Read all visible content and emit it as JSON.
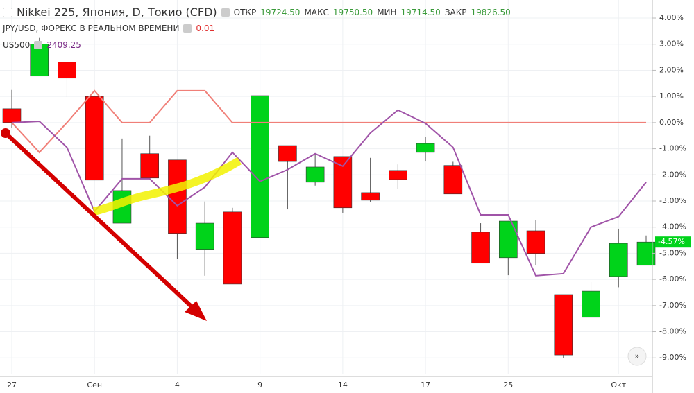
{
  "chart_data": {
    "type": "candlestick",
    "title": "Nikkei 225, Япония, D, Токио (CFD)",
    "readout": [
      {
        "label": "ОТКР",
        "value": "19724.50"
      },
      {
        "label": "МАКС",
        "value": "19750.50"
      },
      {
        "label": "МИН",
        "value": "19714.50"
      },
      {
        "label": "ЗАКР",
        "value": "19826.50"
      }
    ],
    "categories": [
      "27",
      null,
      null,
      "Сен",
      null,
      null,
      "4",
      null,
      null,
      "9",
      null,
      null,
      "14",
      null,
      null,
      "17",
      null,
      null,
      "25",
      null,
      null,
      null,
      "Окт",
      null
    ],
    "up_color": "#00d31a",
    "down_color": "#ff0000",
    "open": [
      0.53,
      1.78,
      2.31,
      1.0,
      -3.85,
      -1.19,
      -1.43,
      -4.85,
      -3.42,
      -4.4,
      -0.88,
      -2.28,
      -1.3,
      -2.68,
      -1.83,
      -1.14,
      -1.64,
      -4.19,
      -5.17,
      -4.14,
      -6.58,
      -7.45,
      -5.89,
      -5.46
    ],
    "high": [
      1.25,
      3.24,
      2.31,
      1.0,
      -0.61,
      -0.5,
      -1.43,
      -3.02,
      -3.26,
      1.03,
      -0.88,
      -1.17,
      -1.3,
      -1.35,
      -1.6,
      -0.56,
      -1.5,
      -3.85,
      -3.77,
      -3.74,
      -6.58,
      -6.1,
      -4.06,
      -4.32
    ],
    "low": [
      -0.2,
      1.78,
      0.98,
      -2.2,
      -3.85,
      -2.12,
      -5.2,
      -5.86,
      -6.18,
      -4.4,
      -3.32,
      -2.41,
      -3.45,
      -3.05,
      -2.55,
      -1.49,
      -2.73,
      -5.38,
      -5.84,
      -5.44,
      -9.0,
      -7.45,
      -6.3,
      -5.46
    ],
    "close": [
      0,
      3.0,
      1.7,
      -2.2,
      -2.6,
      -2.12,
      -4.24,
      -3.85,
      -6.18,
      1.03,
      -1.49,
      -1.7,
      -3.26,
      -2.97,
      -2.18,
      -0.8,
      -2.73,
      -5.38,
      -3.77,
      -5.01,
      -8.89,
      -6.45,
      -4.62,
      -4.57
    ],
    "series": [
      {
        "name": "JPY/USD, ФОРЕКС В РЕАЛЬНОМ ВРЕМЕНИ",
        "legend_value": "0.01",
        "color": "#f07f78",
        "values": [
          0,
          -1.14,
          0,
          1.22,
          0,
          0,
          1.22,
          1.22,
          0,
          0,
          0,
          0,
          0,
          0,
          0,
          0,
          0,
          0,
          0,
          0,
          0,
          0,
          0,
          0
        ]
      },
      {
        "name": "US500",
        "legend_value": "2409.25",
        "color": "#a054a8",
        "values": [
          0,
          0.05,
          -0.95,
          -3.4,
          -2.15,
          -2.15,
          -3.18,
          -2.47,
          -1.14,
          -2.25,
          -1.8,
          -1.19,
          -1.67,
          -0.4,
          0.48,
          -0.03,
          -0.95,
          -3.53,
          -3.53,
          -5.86,
          -5.78,
          -4.0,
          -3.6,
          -2.28
        ]
      }
    ],
    "last_value": {
      "value": -4.57,
      "label": "-4.57%"
    },
    "ylim": [
      -9.63,
      4.69
    ],
    "yticks": [
      {
        "value": 4,
        "label": "4.00%"
      },
      {
        "value": 3,
        "label": "3.00%"
      },
      {
        "value": 2,
        "label": "2.00%"
      },
      {
        "value": 1,
        "label": "1.00%"
      },
      {
        "value": 0,
        "label": "0.00%"
      },
      {
        "value": -1,
        "label": "-1.00%"
      },
      {
        "value": -2,
        "label": "-2.00%"
      },
      {
        "value": -3,
        "label": "-3.00%"
      },
      {
        "value": -4,
        "label": "-4.00%"
      },
      {
        "value": -5,
        "label": "-5.00%"
      },
      {
        "value": -6,
        "label": "-6.00%"
      },
      {
        "value": -7,
        "label": "-7.00%"
      },
      {
        "value": -8,
        "label": "-8.00%"
      },
      {
        "value": -9,
        "label": "-9.00%"
      }
    ],
    "grid": true
  }
}
